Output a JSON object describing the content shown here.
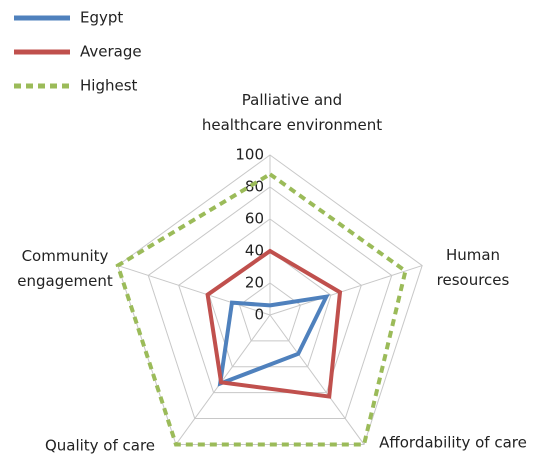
{
  "chart_data": {
    "type": "radar",
    "categories": [
      "Palliative and\nhealthcare environment",
      "Human\nresources",
      "Affordability of care",
      "Quality of care",
      "Community\nengagement"
    ],
    "series": [
      {
        "name": "Egypt",
        "color": "#4f81bd",
        "values": [
          6,
          37,
          30,
          53,
          25
        ]
      },
      {
        "name": "Average",
        "color": "#c0504d",
        "values": [
          40,
          46,
          63,
          52,
          41
        ]
      },
      {
        "name": "Highest",
        "color": "#9bbb59",
        "dashed": true,
        "values": [
          88,
          89,
          100,
          100,
          100
        ]
      }
    ],
    "rlim": [
      0,
      100
    ],
    "rticks": [
      0,
      20,
      40,
      60,
      80,
      100
    ],
    "grid": true,
    "legend": "top-left"
  }
}
